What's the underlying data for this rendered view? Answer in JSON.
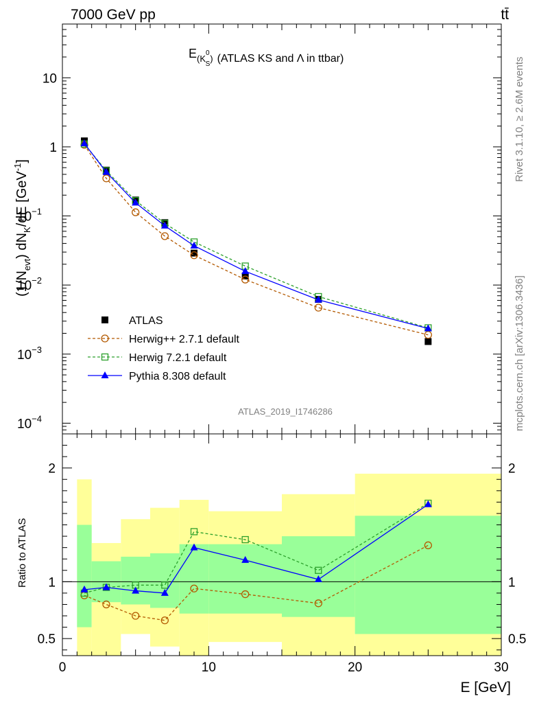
{
  "header": {
    "left": "7000 GeV pp",
    "right": "tt̄"
  },
  "side": {
    "rivet": "Rivet 3.1.10, ≥ 2.6M events",
    "mcplots": "mcplots.cern.ch [arXiv:1306.3436]"
  },
  "colors": {
    "atlas": "#000000",
    "herwigpp": "#b35900",
    "herwig7": "#2ca02c",
    "pythia": "#0000ff",
    "band_outer": "#ffff99",
    "band_inner": "#99ff99"
  },
  "chart_data": [
    {
      "type": "line",
      "title_main": "E",
      "title_sub": "(K",
      "title_sup": "0",
      "title_subsub": "S",
      "title_close": ")",
      "title_rest": "(ATLAS KS and Λ in ttbar)",
      "analysis": "ATLAS_2019_I1746286",
      "ylabel": "(1/N_evt) dN_K/dE [GeV^-1]",
      "ylabel_parts": {
        "a": "(1/N",
        "b": "evt",
        "c": ") dN",
        "d": "K",
        "e": "/dE [GeV",
        "f": "-1",
        "g": "]"
      },
      "yscale": "log",
      "ylim": [
        7e-05,
        60
      ],
      "xlim": [
        0,
        30
      ],
      "yticks": [
        {
          "v": 10,
          "base": "10",
          "exp": ""
        },
        {
          "v": 1,
          "base": "1",
          "exp": ""
        },
        {
          "v": 0.1,
          "base": "10",
          "exp": "−1"
        },
        {
          "v": 0.01,
          "base": "10",
          "exp": "−2"
        },
        {
          "v": 0.001,
          "base": "10",
          "exp": "−3"
        },
        {
          "v": 0.0001,
          "base": "10",
          "exp": "−4"
        }
      ],
      "x": [
        1.5,
        3,
        5,
        7,
        9,
        12.5,
        17.5,
        25
      ],
      "series": [
        {
          "name": "ATLAS",
          "marker": "square-filled",
          "color": "#000000",
          "values": [
            1.22,
            0.46,
            0.17,
            0.08,
            0.029,
            0.0135,
            0.0062,
            0.00152
          ]
        },
        {
          "name": "Herwig++ 2.7.1 default",
          "marker": "circle-open",
          "color": "#b35900",
          "dash": true,
          "values": [
            1.07,
            0.35,
            0.113,
            0.051,
            0.027,
            0.012,
            0.0047,
            0.0019
          ]
        },
        {
          "name": "Herwig 7.2.1 default",
          "marker": "square-open",
          "color": "#2ca02c",
          "dash": true,
          "values": [
            1.1,
            0.45,
            0.167,
            0.078,
            0.042,
            0.0188,
            0.0068,
            0.0024
          ]
        },
        {
          "name": "Pythia 8.308 default",
          "marker": "triangle-filled",
          "color": "#0000ff",
          "dash": false,
          "values": [
            1.12,
            0.43,
            0.155,
            0.072,
            0.037,
            0.0158,
            0.0061,
            0.00235
          ]
        }
      ],
      "legend_position": "lower-left"
    },
    {
      "type": "line",
      "ylabel": "Ratio to ATLAS",
      "ylim": [
        0.35,
        2.3
      ],
      "xlim": [
        0,
        30
      ],
      "yticks": [
        0.5,
        1,
        2
      ],
      "yticklabels": [
        "0.5",
        "1",
        "2"
      ],
      "xticks": [
        0,
        10,
        20,
        30
      ],
      "xticklabels": [
        "0",
        "10",
        "20",
        "30"
      ],
      "xlabel": "E [GeV]",
      "reference": 1,
      "bands": [
        {
          "x0": 1,
          "x1": 2,
          "inner": [
            0.6,
            1.5
          ],
          "outer": [
            0.3,
            1.9
          ]
        },
        {
          "x0": 2,
          "x1": 4,
          "inner": [
            0.82,
            1.18
          ],
          "outer": [
            0.3,
            1.34
          ]
        },
        {
          "x0": 4,
          "x1": 6,
          "inner": [
            0.8,
            1.22
          ],
          "outer": [
            0.54,
            1.55
          ]
        },
        {
          "x0": 6,
          "x1": 8,
          "inner": [
            0.77,
            1.25
          ],
          "outer": [
            0.43,
            1.65
          ]
        },
        {
          "x0": 8,
          "x1": 10,
          "inner": [
            0.72,
            1.33
          ],
          "outer": [
            0.3,
            1.72
          ]
        },
        {
          "x0": 10,
          "x1": 15,
          "inner": [
            0.72,
            1.33
          ],
          "outer": [
            0.47,
            1.62
          ]
        },
        {
          "x0": 15,
          "x1": 20,
          "inner": [
            0.69,
            1.4
          ],
          "outer": [
            0.3,
            1.77
          ]
        },
        {
          "x0": 20,
          "x1": 30,
          "inner": [
            0.54,
            1.58
          ],
          "outer": [
            0.3,
            1.95
          ]
        }
      ],
      "x": [
        1.5,
        3,
        5,
        7,
        9,
        12.5,
        17.5,
        25
      ],
      "series": [
        {
          "name": "Herwig++ 2.7.1 default",
          "marker": "circle-open",
          "color": "#b35900",
          "dash": true,
          "values": [
            0.88,
            0.8,
            0.7,
            0.66,
            0.94,
            0.89,
            0.81,
            1.32
          ]
        },
        {
          "name": "Herwig 7.2.1 default",
          "marker": "square-open",
          "color": "#2ca02c",
          "dash": true,
          "values": [
            0.9,
            0.95,
            0.97,
            0.97,
            1.44,
            1.37,
            1.1,
            1.69
          ]
        },
        {
          "name": "Pythia 8.308 default",
          "marker": "triangle-filled",
          "color": "#0000ff",
          "dash": false,
          "values": [
            0.93,
            0.95,
            0.92,
            0.9,
            1.3,
            1.19,
            1.02,
            1.68
          ]
        }
      ]
    }
  ]
}
